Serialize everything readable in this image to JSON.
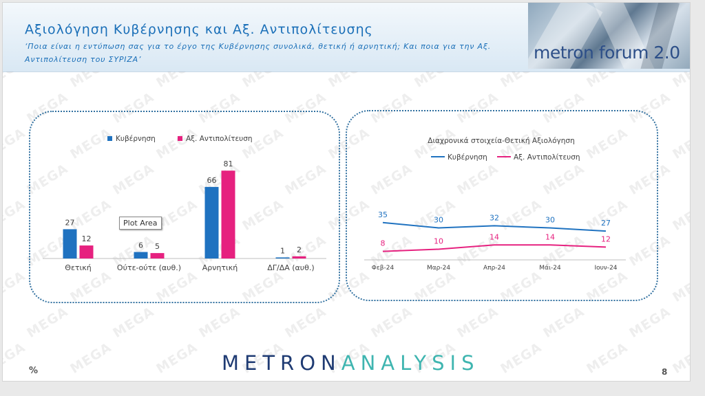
{
  "header": {
    "title": "Αξιολόγηση Κυβέρνησης και Αξ. Αντιπολίτευσης",
    "subtitle": "‘Ποια είναι η εντύπωση σας για το έργο της Κυβέρνησης συνολικά, θετική ή αρνητική; Και ποια για την Αξ. Αντιπολίτευση του ΣΥΡΙΖΑ’",
    "logo_text": "metron forum 2.0"
  },
  "watermark_text": "MEGA",
  "tooltip_text": "Plot Area",
  "footer": {
    "brand_part1": "METRON",
    "brand_part2": "ANALYSIS",
    "unit": "%",
    "page_number": "8"
  },
  "colors": {
    "blue": "#1f72c0",
    "pink": "#e6217f",
    "title": "#1a6fb8"
  },
  "chart_data": [
    {
      "type": "bar",
      "categories": [
        "Θετική",
        "Ούτε-ούτε (αυθ.)",
        "Αρνητική",
        "ΔΓ/ΔΑ (αυθ.)"
      ],
      "series": [
        {
          "name": "Κυβέρνηση",
          "values": [
            27,
            6,
            66,
            1
          ],
          "color": "#1f72c0"
        },
        {
          "name": "Αξ. Αντιπολίτευση",
          "values": [
            12,
            5,
            81,
            2
          ],
          "color": "#e6217f"
        }
      ],
      "ylim": [
        0,
        90
      ],
      "legend": "top",
      "grid": false,
      "data_labels": true
    },
    {
      "type": "line",
      "title": "Διαχρονικά στοιχεία-Θετική Αξιολόγηση",
      "categories": [
        "Φεβ-24",
        "Μαρ-24",
        "Απρ-24",
        "Μάι-24",
        "Ιουν-24"
      ],
      "series": [
        {
          "name": "Κυβέρνηση",
          "values": [
            35,
            30,
            32,
            30,
            27
          ],
          "color": "#1f72c0"
        },
        {
          "name": "Αξ. Αντιπολίτευση",
          "values": [
            8,
            10,
            14,
            14,
            12
          ],
          "color": "#e6217f"
        }
      ],
      "ylim": [
        0,
        70
      ],
      "legend": "top",
      "grid": false,
      "data_labels": true
    }
  ]
}
